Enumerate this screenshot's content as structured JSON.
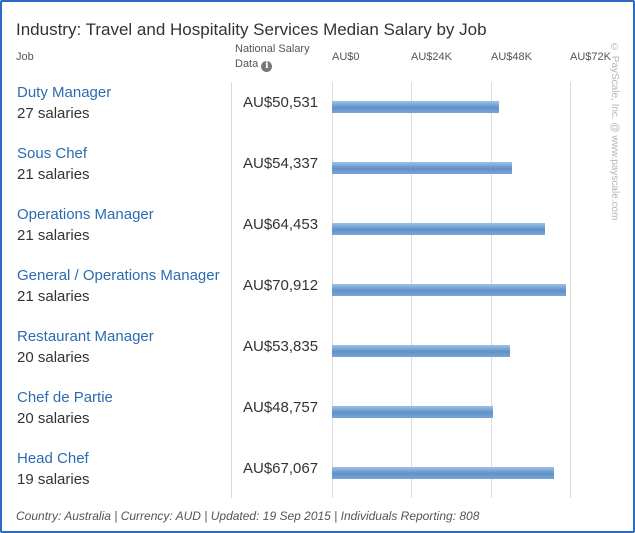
{
  "title": "Industry: Travel and Hospitality Services Median Salary by Job",
  "headers": {
    "job": "Job",
    "national_salary": "National Salary Data",
    "info_icon": "info-icon"
  },
  "watermark": "© PayScale, Inc. @ www.payscale.com",
  "footer": "Country: Australia | Currency: AUD | Updated: 19 Sep 2015 | Individuals Reporting: 808",
  "chart_data": {
    "type": "bar",
    "orientation": "horizontal",
    "title": "Industry: Travel and Hospitality Services Median Salary by Job",
    "xlim": [
      0,
      72000
    ],
    "x_ticks": [
      0,
      24000,
      48000,
      72000
    ],
    "x_tick_labels": [
      "AU$0",
      "AU$24K",
      "AU$48K",
      "AU$72K"
    ],
    "grid": true,
    "bar_color": "#6c9bd0",
    "categories": [
      "Duty Manager",
      "Sous Chef",
      "Operations Manager",
      "General / Operations Manager",
      "Restaurant Manager",
      "Chef de Partie",
      "Head Chef"
    ],
    "counts": [
      "27 salaries",
      "21 salaries",
      "21 salaries",
      "21 salaries",
      "20 salaries",
      "20 salaries",
      "19 salaries"
    ],
    "value_labels": [
      "AU$50,531",
      "AU$54,337",
      "AU$64,453",
      "AU$70,912",
      "AU$53,835",
      "AU$48,757",
      "AU$67,067"
    ],
    "values": [
      50531,
      54337,
      64453,
      70912,
      53835,
      48757,
      67067
    ]
  }
}
